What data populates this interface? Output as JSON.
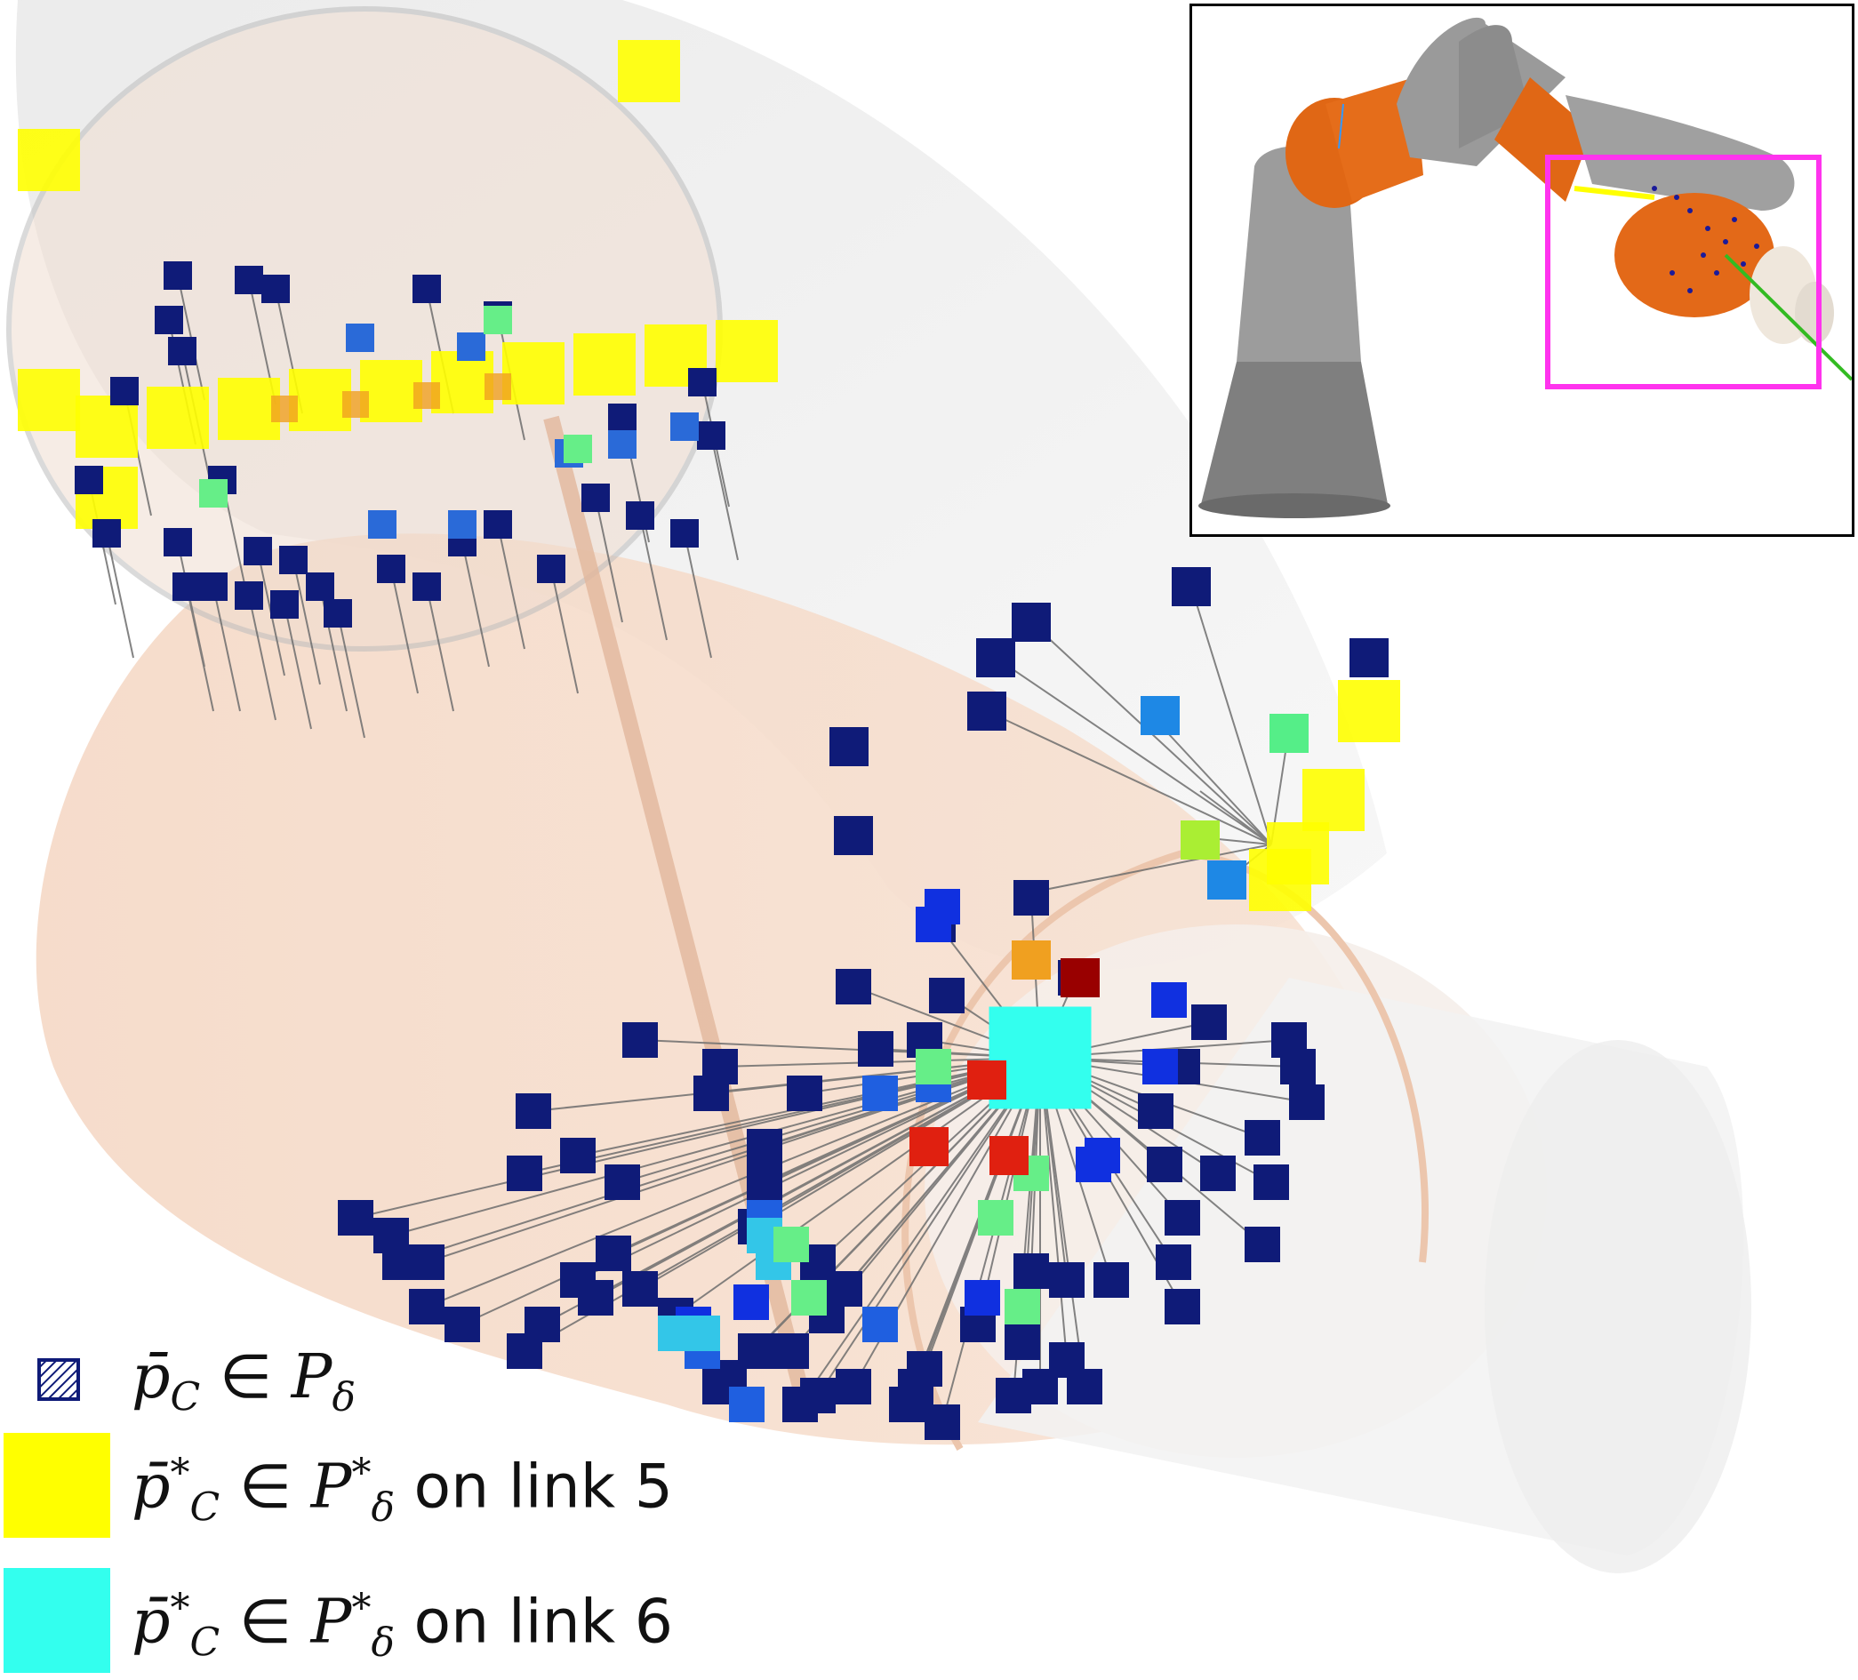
{
  "colors": {
    "point_cloud": "#0f1b78",
    "closest_link5": "#ffff00",
    "closest_link6": "#33ffee",
    "robot_gray": "#9a9a9a",
    "robot_orange": "#e0661a",
    "highlight_box": "#ff33ee",
    "link_shell": "#f3d3c0"
  },
  "legend": {
    "row1": {
      "main": "p̄",
      "sub": "C",
      "member": " ∈ ",
      "set": "P",
      "set_sub": "δ",
      "suffix": ""
    },
    "row2": {
      "main": "p̄",
      "sup": "*",
      "sub": "C",
      "member": " ∈ ",
      "set": "P",
      "set_sup": "*",
      "set_sub": "δ",
      "suffix": " on link 5"
    },
    "row3": {
      "main": "p̄",
      "sup": "*",
      "sub": "C",
      "member": " ∈ ",
      "set": "P",
      "set_sup": "*",
      "set_sub": "δ",
      "suffix": " on link 6"
    }
  },
  "inset": {
    "icons": [
      "robot-arm-icon",
      "highlight-box-icon"
    ]
  }
}
